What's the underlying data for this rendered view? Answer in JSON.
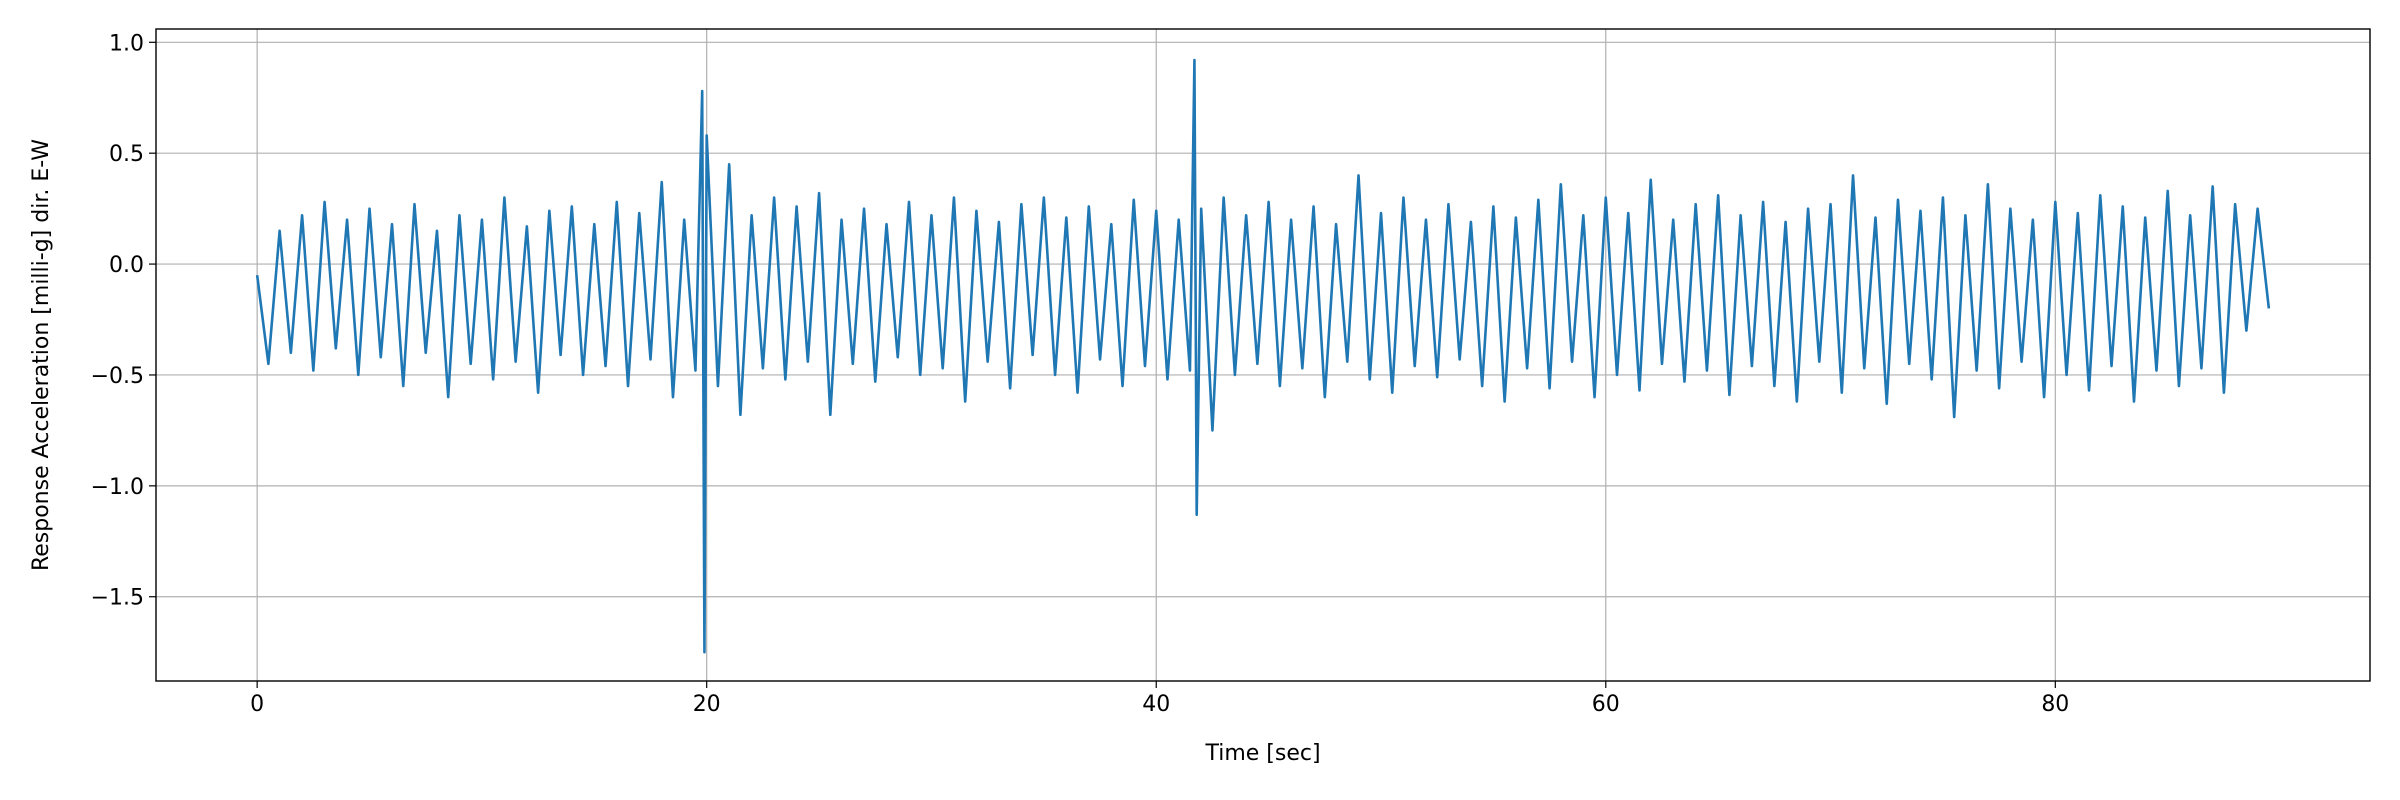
{
  "chart_data": {
    "type": "line",
    "xlabel": "Time [sec]",
    "ylabel": "Response Acceleration [milli-g] dir. E-W",
    "color": "#1f77b4",
    "grid": true,
    "xlim": [
      -4.5,
      94
    ],
    "ylim": [
      -1.88,
      1.06
    ],
    "xticks": [
      0,
      20,
      40,
      60,
      80
    ],
    "yticks": [
      {
        "value": -1.5,
        "label": "−1.5"
      },
      {
        "value": -1.0,
        "label": "−1.0"
      },
      {
        "value": -0.5,
        "label": "−0.5"
      },
      {
        "value": 0.0,
        "label": "0.0"
      },
      0.5,
      {
        "value": 1.0,
        "label": "1.0"
      }
    ],
    "x": [
      0,
      0.5,
      1,
      1.5,
      2,
      2.5,
      3,
      3.5,
      4,
      4.5,
      5,
      5.5,
      6,
      6.5,
      7,
      7.5,
      8,
      8.5,
      9,
      9.5,
      10,
      10.5,
      11,
      11.5,
      12,
      12.5,
      13,
      13.5,
      14,
      14.5,
      15,
      15.5,
      16,
      16.5,
      17,
      17.5,
      18,
      18.5,
      19,
      19.5,
      19.8,
      19.9,
      20.0,
      20.5,
      21,
      21.5,
      22,
      22.5,
      23,
      23.5,
      24,
      24.5,
      25,
      25.5,
      26,
      26.5,
      27,
      27.5,
      28,
      28.5,
      29,
      29.5,
      30,
      30.5,
      31,
      31.5,
      32,
      32.5,
      33,
      33.5,
      34,
      34.5,
      35,
      35.5,
      36,
      36.5,
      37,
      37.5,
      38,
      38.5,
      39,
      39.5,
      40,
      40.5,
      41,
      41.5,
      41.7,
      41.8,
      42.0,
      42.5,
      43,
      43.5,
      44,
      44.5,
      45,
      45.5,
      46,
      46.5,
      47,
      47.5,
      48,
      48.5,
      49,
      49.5,
      50,
      50.5,
      51,
      51.5,
      52,
      52.5,
      53,
      53.5,
      54,
      54.5,
      55,
      55.5,
      56,
      56.5,
      57,
      57.5,
      58,
      58.5,
      59,
      59.5,
      60,
      60.5,
      61,
      61.5,
      62,
      62.5,
      63,
      63.5,
      64,
      64.5,
      65,
      65.5,
      66,
      66.5,
      67,
      67.5,
      68,
      68.5,
      69,
      69.5,
      70,
      70.5,
      71,
      71.5,
      72,
      72.5,
      73,
      73.5,
      74,
      74.5,
      75,
      75.5,
      76,
      76.5,
      77,
      77.5,
      78,
      78.5,
      79,
      79.5,
      80,
      80.5,
      81,
      81.5,
      82,
      82.5,
      83,
      83.5,
      84,
      84.5,
      85,
      85.5,
      86,
      86.5,
      87,
      87.5,
      88,
      88.5,
      89,
      89.5
    ],
    "values": [
      -0.05,
      -0.45,
      0.15,
      -0.4,
      0.22,
      -0.48,
      0.28,
      -0.38,
      0.2,
      -0.5,
      0.25,
      -0.42,
      0.18,
      -0.55,
      0.27,
      -0.4,
      0.15,
      -0.6,
      0.22,
      -0.45,
      0.2,
      -0.52,
      0.3,
      -0.44,
      0.17,
      -0.58,
      0.24,
      -0.41,
      0.26,
      -0.5,
      0.18,
      -0.46,
      0.28,
      -0.55,
      0.23,
      -0.43,
      0.37,
      -0.6,
      0.2,
      -0.48,
      0.78,
      -1.75,
      0.58,
      -0.55,
      0.45,
      -0.68,
      0.22,
      -0.47,
      0.3,
      -0.52,
      0.26,
      -0.44,
      0.32,
      -0.68,
      0.2,
      -0.45,
      0.25,
      -0.53,
      0.18,
      -0.42,
      0.28,
      -0.5,
      0.22,
      -0.47,
      0.3,
      -0.62,
      0.24,
      -0.44,
      0.19,
      -0.56,
      0.27,
      -0.41,
      0.3,
      -0.5,
      0.21,
      -0.58,
      0.26,
      -0.43,
      0.18,
      -0.55,
      0.29,
      -0.46,
      0.24,
      -0.52,
      0.2,
      -0.48,
      0.92,
      -1.13,
      0.25,
      -0.75,
      0.3,
      -0.5,
      0.22,
      -0.45,
      0.28,
      -0.55,
      0.2,
      -0.47,
      0.26,
      -0.6,
      0.18,
      -0.44,
      0.4,
      -0.52,
      0.23,
      -0.58,
      0.3,
      -0.46,
      0.2,
      -0.51,
      0.27,
      -0.43,
      0.19,
      -0.55,
      0.26,
      -0.62,
      0.21,
      -0.47,
      0.29,
      -0.56,
      0.36,
      -0.44,
      0.22,
      -0.6,
      0.3,
      -0.5,
      0.23,
      -0.57,
      0.38,
      -0.45,
      0.2,
      -0.53,
      0.27,
      -0.48,
      0.31,
      -0.59,
      0.22,
      -0.46,
      0.28,
      -0.55,
      0.19,
      -0.62,
      0.25,
      -0.44,
      0.27,
      -0.58,
      0.4,
      -0.47,
      0.21,
      -0.63,
      0.29,
      -0.45,
      0.24,
      -0.52,
      0.3,
      -0.69,
      0.22,
      -0.48,
      0.36,
      -0.56,
      0.25,
      -0.44,
      0.2,
      -0.6,
      0.28,
      -0.5,
      0.23,
      -0.57,
      0.31,
      -0.46,
      0.26,
      -0.62,
      0.21,
      -0.48,
      0.33,
      -0.55,
      0.22,
      -0.47,
      0.35,
      -0.58,
      0.27,
      -0.3,
      0.25,
      -0.2
    ]
  }
}
